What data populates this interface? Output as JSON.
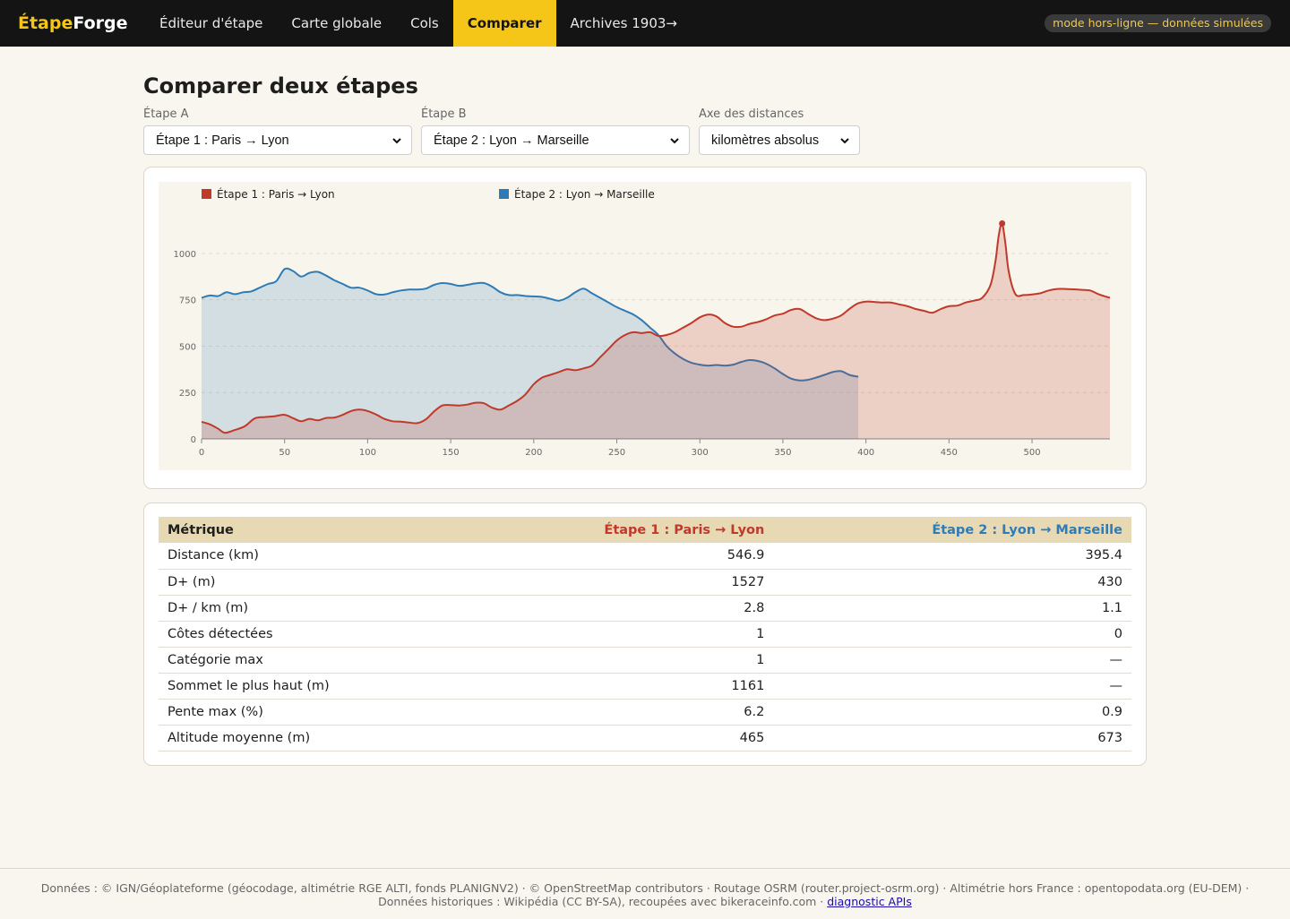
{
  "nav": {
    "brand_part1": "Étape",
    "brand_part2": "Forge",
    "items": [
      {
        "label": "Éditeur d'étape"
      },
      {
        "label": "Carte globale"
      },
      {
        "label": "Cols"
      },
      {
        "label": "Comparer"
      },
      {
        "label": "Archives 1903→"
      }
    ],
    "status_pill": "mode hors-ligne — données simulées"
  },
  "page": {
    "title": "Comparer deux étapes"
  },
  "controls": {
    "stage_a": {
      "label": "Étape A",
      "value": "Étape 1 : Paris → Lyon"
    },
    "stage_b": {
      "label": "Étape B",
      "value": "Étape 2 : Lyon → Marseille"
    },
    "axis": {
      "label": "Axe des distances",
      "value": "kilomètres absolus"
    }
  },
  "colors": {
    "accent": "#f5c518",
    "series_a": "#c0392b",
    "series_b": "#2e7bb5",
    "header": "#141414"
  },
  "chart_data": {
    "type": "area",
    "xlim": [
      0,
      546.9
    ],
    "ylim": [
      0,
      1161
    ],
    "x_ticks": [
      0,
      50,
      100,
      150,
      200,
      250,
      300,
      350,
      400,
      450,
      500
    ],
    "y_ticks": [
      0,
      250,
      500,
      750,
      1000
    ],
    "grid": true,
    "legend_position": "top-left",
    "series": [
      {
        "name": "Étape 1 : Paris → Lyon",
        "color": "#c0392b",
        "x": [
          0,
          5,
          10,
          14,
          20,
          26,
          32,
          38,
          44,
          50,
          55,
          60,
          65,
          70,
          75,
          80,
          85,
          90,
          95,
          100,
          105,
          110,
          115,
          120,
          125,
          130,
          135,
          140,
          145,
          150,
          155,
          160,
          165,
          170,
          175,
          180,
          185,
          190,
          195,
          200,
          205,
          210,
          215,
          220,
          225,
          230,
          235,
          240,
          245,
          250,
          255,
          260,
          265,
          270,
          275,
          280,
          285,
          290,
          295,
          300,
          305,
          310,
          315,
          320,
          325,
          330,
          335,
          340,
          345,
          350,
          355,
          360,
          365,
          370,
          375,
          380,
          385,
          390,
          395,
          400,
          405,
          410,
          415,
          420,
          425,
          430,
          435,
          440,
          445,
          450,
          455,
          460,
          465,
          470,
          475,
          478,
          480,
          482,
          484,
          486,
          490,
          495,
          500,
          505,
          510,
          515,
          520,
          525,
          530,
          535,
          540,
          546.9
        ],
        "y": [
          92,
          78,
          55,
          33,
          48,
          68,
          110,
          118,
          122,
          130,
          112,
          95,
          108,
          100,
          113,
          115,
          130,
          150,
          158,
          150,
          132,
          108,
          95,
          93,
          88,
          85,
          105,
          148,
          180,
          182,
          180,
          185,
          195,
          192,
          168,
          158,
          180,
          205,
          240,
          295,
          330,
          345,
          360,
          375,
          370,
          380,
          395,
          440,
          485,
          530,
          560,
          575,
          570,
          575,
          555,
          560,
          575,
          600,
          625,
          655,
          670,
          660,
          625,
          605,
          605,
          620,
          630,
          645,
          665,
          675,
          695,
          700,
          675,
          650,
          640,
          648,
          665,
          700,
          730,
          740,
          738,
          735,
          735,
          725,
          715,
          700,
          690,
          680,
          700,
          715,
          718,
          735,
          745,
          760,
          830,
          960,
          1100,
          1161,
          1050,
          900,
          780,
          775,
          778,
          785,
          800,
          808,
          808,
          806,
          803,
          800,
          780,
          760
        ]
      },
      {
        "name": "Étape 2 : Lyon → Marseille",
        "color": "#2e7bb5",
        "x": [
          0,
          5,
          10,
          15,
          20,
          25,
          30,
          35,
          40,
          45,
          50,
          55,
          60,
          65,
          70,
          75,
          80,
          85,
          90,
          95,
          100,
          105,
          110,
          115,
          120,
          125,
          130,
          135,
          140,
          145,
          150,
          155,
          160,
          165,
          170,
          175,
          180,
          185,
          190,
          195,
          200,
          205,
          210,
          215,
          220,
          225,
          230,
          235,
          240,
          245,
          250,
          255,
          260,
          265,
          270,
          275,
          280,
          285,
          290,
          295,
          300,
          305,
          310,
          315,
          320,
          325,
          330,
          335,
          340,
          345,
          350,
          355,
          360,
          365,
          370,
          375,
          380,
          385,
          390,
          395.4
        ],
        "y": [
          760,
          773,
          770,
          790,
          780,
          790,
          795,
          815,
          835,
          850,
          915,
          905,
          875,
          895,
          900,
          880,
          855,
          835,
          815,
          815,
          800,
          780,
          778,
          790,
          800,
          805,
          805,
          810,
          830,
          840,
          835,
          825,
          830,
          838,
          840,
          820,
          790,
          775,
          775,
          770,
          768,
          765,
          755,
          745,
          760,
          790,
          810,
          785,
          760,
          735,
          710,
          690,
          670,
          640,
          600,
          560,
          500,
          460,
          430,
          410,
          400,
          395,
          398,
          395,
          400,
          415,
          425,
          420,
          405,
          380,
          350,
          325,
          315,
          318,
          330,
          345,
          360,
          365,
          345,
          335
        ]
      }
    ]
  },
  "table": {
    "headers": [
      "Métrique",
      "Étape 1 : Paris → Lyon",
      "Étape 2 : Lyon → Marseille"
    ],
    "rows": [
      [
        "Distance (km)",
        "546.9",
        "395.4"
      ],
      [
        "D+ (m)",
        "1527",
        "430"
      ],
      [
        "D+ / km (m)",
        "2.8",
        "1.1"
      ],
      [
        "Côtes détectées",
        "1",
        "0"
      ],
      [
        "Catégorie max",
        "1",
        "—"
      ],
      [
        "Sommet le plus haut (m)",
        "1161",
        "—"
      ],
      [
        "Pente max (%)",
        "6.2",
        "0.9"
      ],
      [
        "Altitude moyenne (m)",
        "465",
        "673"
      ]
    ]
  },
  "footer": {
    "text": "Données : © IGN/Géoplateforme (géocodage, altimétrie RGE ALTI, fonds PLANIGNV2) · © OpenStreetMap contributors · Routage OSRM (router.project-osrm.org) · Altimétrie hors France : opentopodata.org (EU-DEM) · Données historiques : Wikipédia (CC BY-SA), recoupées avec bikeraceinfo.com · ",
    "link": "diagnostic APIs"
  }
}
